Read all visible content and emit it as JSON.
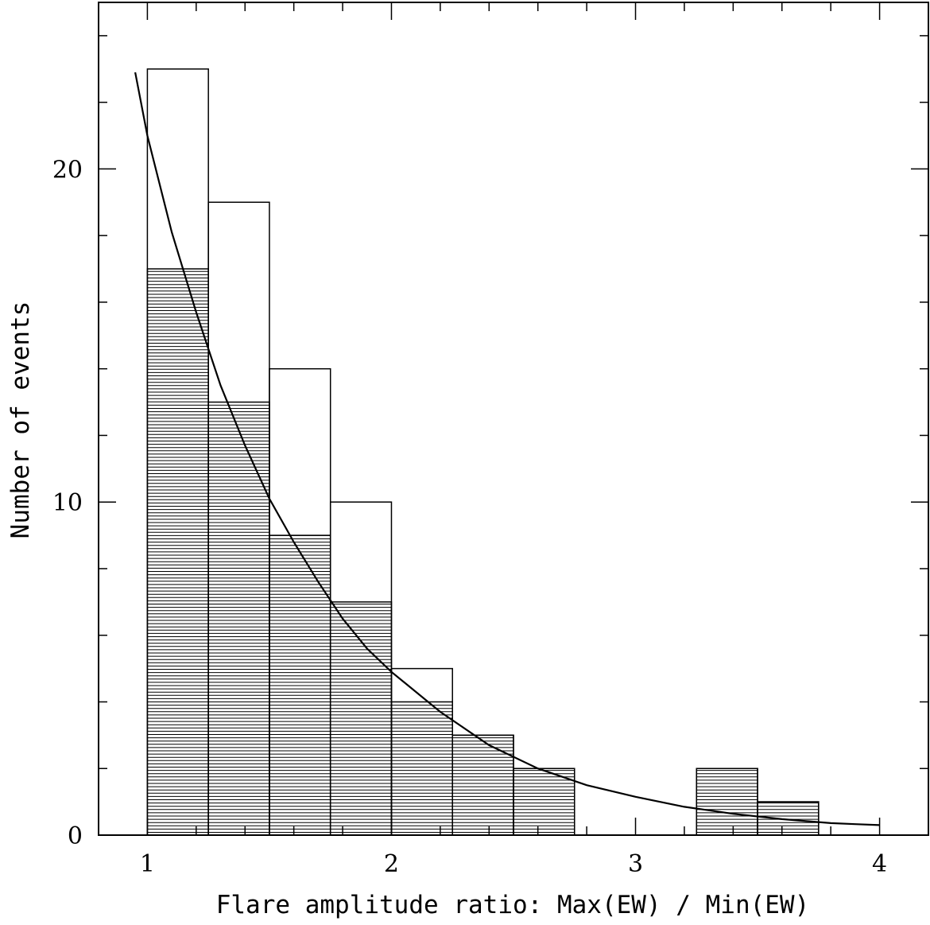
{
  "chart_data": {
    "type": "bar",
    "xlabel": "Flare amplitude ratio: Max(EW) / Min(EW)",
    "ylabel": "Number of events",
    "xlim": [
      0.8,
      4.2
    ],
    "ylim": [
      0,
      25
    ],
    "x_ticks": [
      1,
      2,
      3,
      4
    ],
    "y_ticks": [
      0,
      10,
      20
    ],
    "x_minor_step": 0.2,
    "y_minor_step": 2,
    "bin_edges": [
      1.0,
      1.25,
      1.5,
      1.75,
      2.0,
      2.25,
      2.5,
      2.75,
      3.0,
      3.25,
      3.5,
      3.75
    ],
    "series": [
      {
        "values": [
          23,
          19,
          14,
          10,
          5,
          3,
          2,
          0,
          0,
          2,
          1
        ],
        "style": "open"
      },
      {
        "values": [
          17,
          13,
          9,
          7,
          4,
          3,
          2,
          0,
          0,
          2,
          1
        ],
        "style": "hatched"
      }
    ],
    "fit_curve": {
      "x": [
        0.95,
        1.0,
        1.1,
        1.2,
        1.3,
        1.4,
        1.5,
        1.6,
        1.7,
        1.8,
        1.9,
        2.0,
        2.2,
        2.4,
        2.6,
        2.8,
        3.0,
        3.2,
        3.4,
        3.6,
        3.8,
        3.9,
        4.0
      ],
      "y": [
        22.9,
        21.0,
        18.1,
        15.7,
        13.5,
        11.7,
        10.1,
        8.8,
        7.6,
        6.5,
        5.6,
        4.9,
        3.7,
        2.7,
        2.0,
        1.5,
        1.15,
        0.85,
        0.64,
        0.48,
        0.36,
        0.33,
        0.3
      ]
    },
    "grid": false,
    "legend": "none"
  }
}
